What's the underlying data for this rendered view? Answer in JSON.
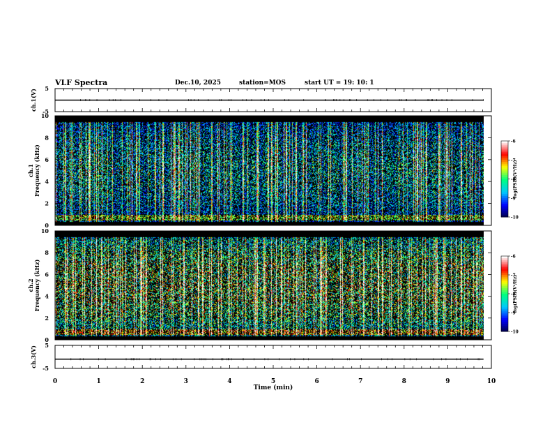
{
  "header": {
    "title": "VLF Spectra",
    "date": "Dec.10, 2025",
    "station": "station=MOS",
    "start": "start  UT =   19: 10: 1"
  },
  "chart_data": [
    {
      "type": "line",
      "name": "ch1-voltage",
      "ylabel": "ch.1(V)",
      "ylim": [
        -5,
        5
      ],
      "ytick_labels": [
        "5",
        "-5"
      ],
      "x": [
        0,
        9.82
      ],
      "y": [
        0,
        0
      ]
    },
    {
      "type": "heatmap",
      "name": "ch1-spectrogram",
      "ylabel": "ch.1 Frequency (kHz)",
      "ylim": [
        0,
        10
      ],
      "ytick_labels": [
        "0",
        "2",
        "4",
        "6",
        "8",
        "10"
      ],
      "xlim": [
        0,
        10
      ],
      "data_xmax": 9.82,
      "colorbar": {
        "label": "log(PSD)(V²/Hz)",
        "range": [
          -10,
          -6
        ],
        "tick_labels": [
          "-6",
          "-7",
          "-8",
          "-9",
          "-10"
        ]
      }
    },
    {
      "type": "heatmap",
      "name": "ch2-spectrogram",
      "ylabel": "ch.2 Frequency (kHz)",
      "ylim": [
        0,
        10
      ],
      "ytick_labels": [
        "0",
        "2",
        "4",
        "6",
        "8",
        "10"
      ],
      "xlim": [
        0,
        10
      ],
      "data_xmax": 9.82,
      "colorbar": {
        "label": "log(PSD)(V²/Hz)",
        "range": [
          -10,
          -6
        ],
        "tick_labels": [
          "-6",
          "-7",
          "-8",
          "-9",
          "-10"
        ]
      }
    },
    {
      "type": "line",
      "name": "ch3-voltage",
      "ylabel": "ch.3(V)",
      "ylim": [
        -5,
        5
      ],
      "ytick_labels": [
        "5",
        "-5"
      ],
      "x": [
        0,
        9.82
      ],
      "y": [
        -1,
        -1
      ]
    }
  ],
  "xaxis": {
    "label": "Time (min)",
    "range": [
      0,
      10
    ],
    "tick_labels": [
      "0",
      "1",
      "2",
      "3",
      "4",
      "5",
      "6",
      "7",
      "8",
      "9",
      "10"
    ]
  },
  "colors": {
    "background": "#000000",
    "trace": "#000000",
    "colormap": [
      "#000040",
      "#0000ff",
      "#00c8ff",
      "#00ff80",
      "#ffff00",
      "#ff0000",
      "#ffffff"
    ]
  }
}
